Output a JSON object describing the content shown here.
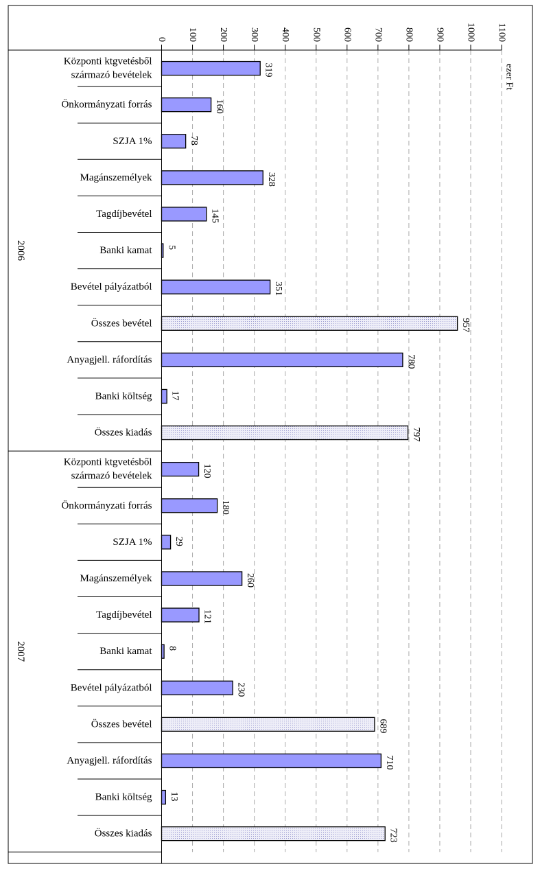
{
  "chart_data": {
    "type": "bar",
    "orientation": "horizontal",
    "title": "",
    "unit_label": "ezer Ft",
    "xlim": [
      0,
      1100
    ],
    "x_ticks": [
      0,
      100,
      200,
      300,
      400,
      500,
      600,
      700,
      800,
      900,
      1000,
      1100
    ],
    "x_tick_labels": [
      "0",
      "100",
      "200",
      "300",
      "400",
      "500",
      "600",
      "700",
      "800",
      "900",
      "1000",
      "1100"
    ],
    "grid": true,
    "colors": {
      "regular": "#9999ff",
      "total": "#d9d9ef",
      "border": "#000000",
      "grid": "#aaaaaa"
    },
    "groups": [
      {
        "label": "2006",
        "items": [
          {
            "label": [
              "Központi ktgvetésből",
              "származó bevételek"
            ],
            "value": 319,
            "value_label": "319",
            "total": false
          },
          {
            "label": [
              "Önkormányzati forrás"
            ],
            "value": 160,
            "value_label": "160",
            "total": false
          },
          {
            "label": [
              "SZJA 1%"
            ],
            "value": 78,
            "value_label": "78",
            "total": false
          },
          {
            "label": [
              "Magánszemélyek"
            ],
            "value": 328,
            "value_label": "328",
            "total": false
          },
          {
            "label": [
              "Tagdíjbevétel"
            ],
            "value": 145,
            "value_label": "145",
            "total": false
          },
          {
            "label": [
              "Banki kamat"
            ],
            "value": 5,
            "value_label": "5",
            "total": false
          },
          {
            "label": [
              "Bevétel pályázatból"
            ],
            "value": 351,
            "value_label": "351",
            "total": false
          },
          {
            "label": [
              "Összes bevétel"
            ],
            "value": 957,
            "value_label": "957",
            "total": true
          },
          {
            "label": [
              "Anyagjell. ráfordítás"
            ],
            "value": 780,
            "value_label": "780",
            "total": false
          },
          {
            "label": [
              "Banki költség"
            ],
            "value": 17,
            "value_label": "17",
            "total": false
          },
          {
            "label": [
              "Összes kiadás"
            ],
            "value": 797,
            "value_label": "797",
            "total": true
          }
        ]
      },
      {
        "label": "2007",
        "items": [
          {
            "label": [
              "Központi ktgvetésből",
              "származó bevételek"
            ],
            "value": 120,
            "value_label": "120",
            "total": false
          },
          {
            "label": [
              "Önkormányzati forrás"
            ],
            "value": 180,
            "value_label": "180",
            "total": false
          },
          {
            "label": [
              "SZJA 1%"
            ],
            "value": 29,
            "value_label": "29",
            "total": false
          },
          {
            "label": [
              "Magánszemélyek"
            ],
            "value": 260,
            "value_label": "260",
            "total": false
          },
          {
            "label": [
              "Tagdíjbevétel"
            ],
            "value": 121,
            "value_label": "121",
            "total": false
          },
          {
            "label": [
              "Banki kamat"
            ],
            "value": 8,
            "value_label": "8",
            "total": false
          },
          {
            "label": [
              "Bevétel pályázatból"
            ],
            "value": 230,
            "value_label": "230",
            "total": false
          },
          {
            "label": [
              "Összes bevétel"
            ],
            "value": 689,
            "value_label": "689",
            "total": true
          },
          {
            "label": [
              "Anyagjell. ráfordítás"
            ],
            "value": 710,
            "value_label": "710",
            "total": false
          },
          {
            "label": [
              "Banki költség"
            ],
            "value": 13,
            "value_label": "13",
            "total": false
          },
          {
            "label": [
              "Összes kiadás"
            ],
            "value": 723,
            "value_label": "723",
            "total": true
          }
        ]
      }
    ]
  }
}
